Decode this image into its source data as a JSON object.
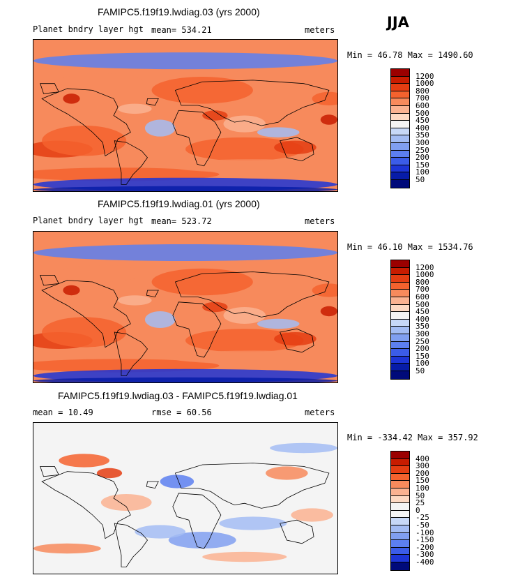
{
  "season": "JJA",
  "chart_data": [
    {
      "type": "heatmap",
      "title": "FAMIPC5.f19f19.lwdiag.03 (yrs 2000)",
      "variable": "Planet bndry layer hgt",
      "mean_label": "mean=",
      "mean": "534.21",
      "units": "meters",
      "min_label": "Min =",
      "min": "46.78",
      "max_label": "Max =",
      "max": "1490.60",
      "levels": [
        "1200",
        "1000",
        "800",
        "700",
        "600",
        "500",
        "450",
        "400",
        "350",
        "300",
        "250",
        "200",
        "150",
        "100",
        "50"
      ],
      "colors": [
        "#9b0000",
        "#c81c00",
        "#e43d12",
        "#f4622e",
        "#f78a5c",
        "#fab291",
        "#fdd9c3",
        "#f4f4f4",
        "#c7d8f7",
        "#a3bcf3",
        "#809ff0",
        "#5c7ff0",
        "#3b5ce8",
        "#1d35d6",
        "#071ca8",
        "#000a7a"
      ]
    },
    {
      "type": "heatmap",
      "title": "FAMIPC5.f19f19.lwdiag.01 (yrs 2000)",
      "variable": "Planet bndry layer hgt",
      "mean_label": "mean=",
      "mean": "523.72",
      "units": "meters",
      "min_label": "Min =",
      "min": "46.10",
      "max_label": "Max =",
      "max": "1534.76",
      "levels": [
        "1200",
        "1000",
        "800",
        "700",
        "600",
        "500",
        "450",
        "400",
        "350",
        "300",
        "250",
        "200",
        "150",
        "100",
        "50"
      ],
      "colors": [
        "#9b0000",
        "#c81c00",
        "#e43d12",
        "#f4622e",
        "#f78a5c",
        "#fab291",
        "#fdd9c3",
        "#f4f4f4",
        "#c7d8f7",
        "#a3bcf3",
        "#809ff0",
        "#5c7ff0",
        "#3b5ce8",
        "#1d35d6",
        "#071ca8",
        "#000a7a"
      ]
    },
    {
      "type": "heatmap",
      "title": "FAMIPC5.f19f19.lwdiag.03 - FAMIPC5.f19f19.lwdiag.01",
      "variable": "",
      "mean_label": "mean =",
      "mean": "10.49",
      "rmse_label": "rmse =",
      "rmse": "60.56",
      "units": "meters",
      "min_label": "Min =",
      "min": "-334.42",
      "max_label": "Max =",
      "max": "357.92",
      "levels": [
        "400",
        "300",
        "200",
        "150",
        "100",
        "50",
        "25",
        "0",
        "-25",
        "-50",
        "-100",
        "-150",
        "-200",
        "-300",
        "-400"
      ],
      "colors": [
        "#9b0000",
        "#c81c00",
        "#e43d12",
        "#f4622e",
        "#f78a5c",
        "#fab291",
        "#fdd9c3",
        "#f4f4f4",
        "#f4f4f4",
        "#c7d8f7",
        "#a3bcf3",
        "#809ff0",
        "#5c7ff0",
        "#3b5ce8",
        "#1d35d6",
        "#000a7a"
      ]
    }
  ]
}
